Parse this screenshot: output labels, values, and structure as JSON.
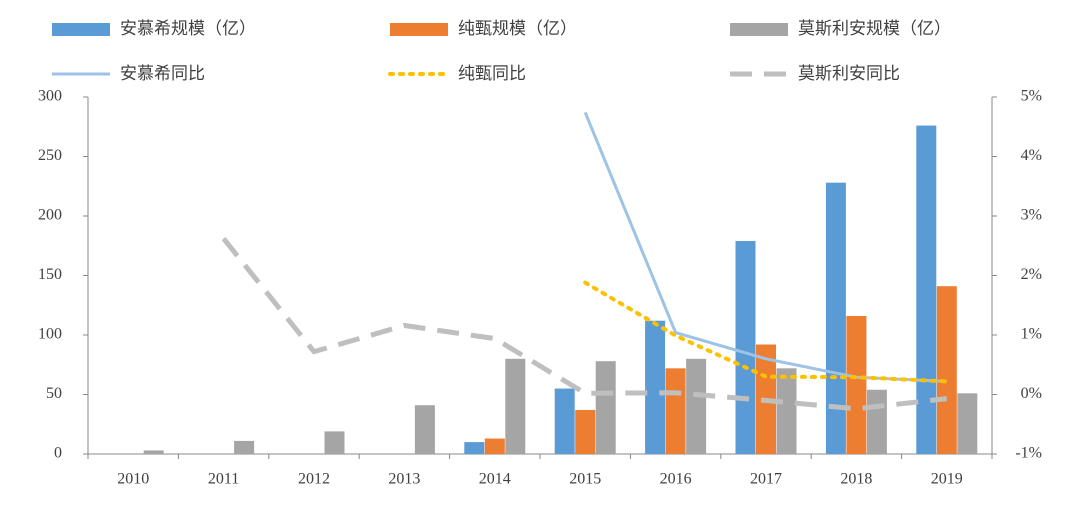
{
  "chart_data": {
    "type": "combo",
    "categories": [
      "2010",
      "2011",
      "2012",
      "2013",
      "2014",
      "2015",
      "2016",
      "2017",
      "2018",
      "2019"
    ],
    "series": [
      {
        "name": "安慕希规模（亿）",
        "type": "bar",
        "color": "#5b9bd5",
        "values": [
          null,
          null,
          null,
          null,
          10,
          55,
          112,
          179,
          228,
          276
        ]
      },
      {
        "name": "纯甄规模（亿）",
        "type": "bar",
        "color": "#ed7d31",
        "values": [
          null,
          null,
          null,
          null,
          13,
          37,
          72,
          92,
          116,
          141
        ]
      },
      {
        "name": "莫斯利安规模（亿）",
        "type": "bar",
        "color": "#a5a5a5",
        "values": [
          3,
          11,
          19,
          41,
          80,
          78,
          80,
          72,
          54,
          51
        ]
      },
      {
        "name": "安慕希同比",
        "type": "line",
        "axis": "y2",
        "style": "solid",
        "color": "#9dc3e6",
        "values": [
          null,
          null,
          null,
          null,
          null,
          4.74,
          1.04,
          0.6,
          0.29,
          0.22
        ]
      },
      {
        "name": "纯甄同比",
        "type": "line",
        "axis": "y2",
        "style": "dotted",
        "color": "#ffc000",
        "values": [
          null,
          null,
          null,
          null,
          null,
          1.88,
          0.99,
          0.3,
          0.29,
          0.22
        ]
      },
      {
        "name": "莫斯利安同比",
        "type": "line",
        "axis": "y2",
        "style": "dashed",
        "color": "#bfbfbf",
        "values": [
          null,
          2.62,
          0.72,
          1.16,
          0.94,
          0.02,
          0.03,
          -0.1,
          -0.24,
          -0.07
        ]
      }
    ],
    "ylim": [
      0,
      300
    ],
    "yticks": [
      0,
      50,
      100,
      150,
      200,
      250,
      300
    ],
    "y2lim": [
      -1,
      5
    ],
    "y2ticks": [
      {
        "value": -1,
        "label": "-1%"
      },
      {
        "value": 0,
        "label": "0%"
      },
      {
        "value": 1,
        "label": "1%"
      },
      {
        "value": 2,
        "label": "2%"
      },
      {
        "value": 3,
        "label": "3%"
      },
      {
        "value": 4,
        "label": "4%"
      },
      {
        "value": 5,
        "label": "5%"
      }
    ],
    "legend": "top"
  }
}
